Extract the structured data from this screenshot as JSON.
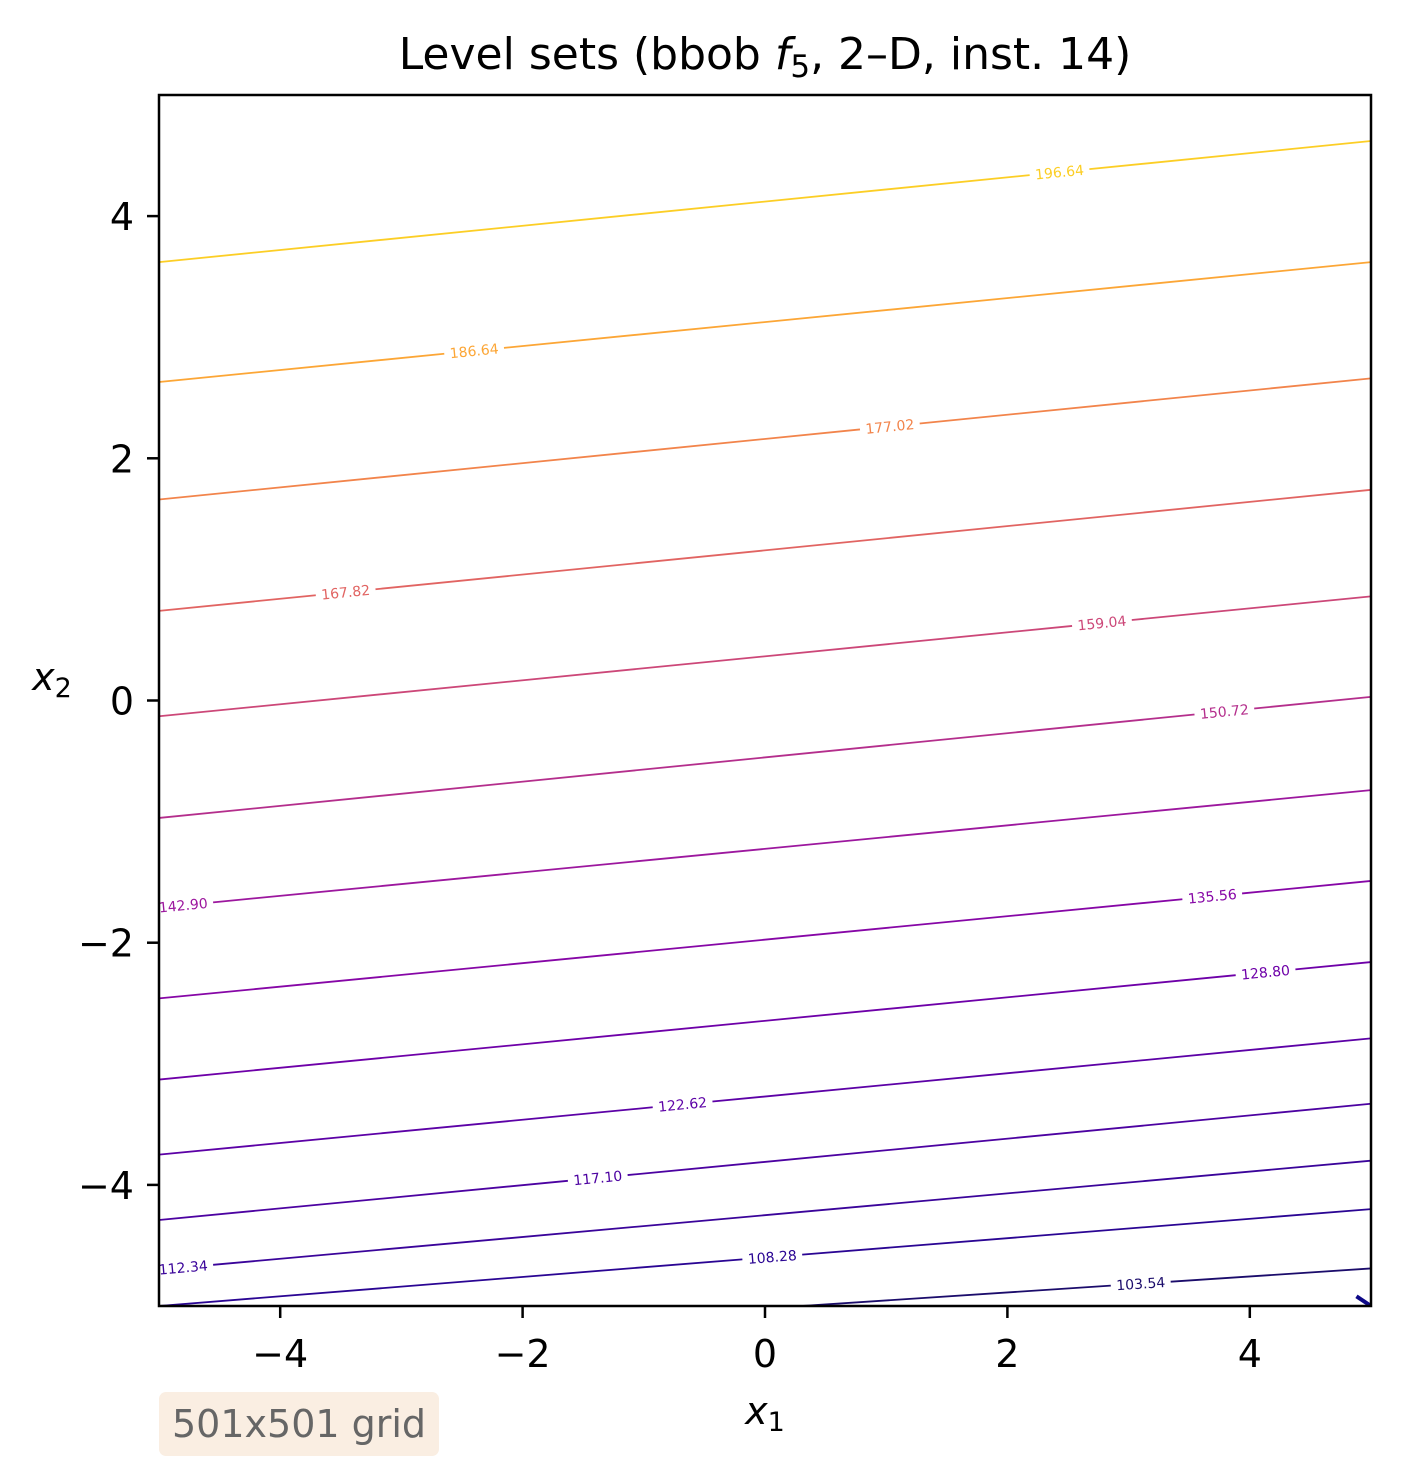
{
  "chart_data": {
    "type": "contour",
    "title_prefix": "Level sets (bbob ",
    "title_fn": "f",
    "title_fn_sub": "5",
    "title_suffix": ", 2–D, inst. 14)",
    "xlabel": "x",
    "xlabel_sub": "1",
    "ylabel": "x",
    "ylabel_sub": "2",
    "xlim": [
      -5,
      5
    ],
    "ylim": [
      -5,
      5
    ],
    "xticks": [
      -4,
      -2,
      0,
      2,
      4
    ],
    "yticks": [
      -4,
      -2,
      0,
      2,
      4
    ],
    "xtick_labels": [
      "−4",
      "−2",
      "0",
      "2",
      "4"
    ],
    "ytick_labels": [
      "−4",
      "−2",
      "0",
      "2",
      "4"
    ],
    "grid": false,
    "colormap": "plasma",
    "levels": [
      {
        "y_left": -5.35,
        "y_right": -4.69,
        "label": "103.54",
        "label_x": 3.1,
        "color": "#1b0c6b"
      },
      {
        "y_left": -5.0,
        "y_right": -4.2,
        "label": "108.28",
        "label_x": 0.06,
        "color": "#2a0593"
      },
      {
        "y_left": -4.7,
        "y_right": -3.8,
        "label": "112.34",
        "label_x": -4.8,
        "color": "#3a049a"
      },
      {
        "y_left": -4.29,
        "y_right": -3.33,
        "label": "117.10",
        "label_x": -1.38,
        "color": "#4c02a1"
      },
      {
        "y_left": -3.75,
        "y_right": -2.79,
        "label": "122.62",
        "label_x": -0.68,
        "color": "#5c01a6"
      },
      {
        "y_left": -3.13,
        "y_right": -2.16,
        "label": "128.80",
        "label_x": 4.13,
        "color": "#6e00a8"
      },
      {
        "y_left": -2.46,
        "y_right": -1.49,
        "label": "135.56",
        "label_x": 3.69,
        "color": "#8606a6"
      },
      {
        "y_left": -1.71,
        "y_right": -0.74,
        "label": "142.90",
        "label_x": -4.8,
        "color": "#9c179e"
      },
      {
        "y_left": -0.97,
        "y_right": 0.03,
        "label": "150.72",
        "label_x": 3.79,
        "color": "#b42e8c"
      },
      {
        "y_left": -0.13,
        "y_right": 0.86,
        "label": "159.04",
        "label_x": 2.78,
        "color": "#cc4778"
      },
      {
        "y_left": 0.74,
        "y_right": 1.74,
        "label": "167.82",
        "label_x": -3.46,
        "color": "#e16462"
      },
      {
        "y_left": 1.66,
        "y_right": 2.66,
        "label": "177.02",
        "label_x": 1.03,
        "color": "#f2844b"
      },
      {
        "y_left": 2.63,
        "y_right": 3.62,
        "label": "186.64",
        "label_x": -2.4,
        "color": "#fca636"
      },
      {
        "y_left": 3.62,
        "y_right": 4.62,
        "label": "196.64",
        "label_x": 2.43,
        "color": "#fcce25"
      }
    ]
  },
  "note": "501x501 grid"
}
